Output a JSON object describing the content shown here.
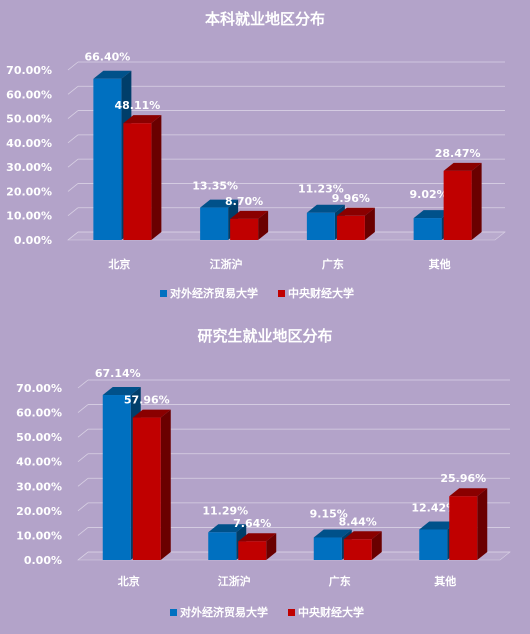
{
  "colors": {
    "background": "#b3a3c9",
    "series_1": "#0070c0",
    "series_2": "#c00000",
    "text": "#ffffff"
  },
  "chart_data": [
    {
      "type": "bar",
      "title": "本科就业地区分布",
      "categories": [
        "北京",
        "江浙沪",
        "广东",
        "其他"
      ],
      "series": [
        {
          "name": "对外经济贸易大学",
          "values": [
            66.4,
            13.35,
            11.23,
            9.02
          ],
          "labels": [
            "66.40%",
            "13.35%",
            "11.23%",
            "9.02%"
          ]
        },
        {
          "name": "中央财经大学",
          "values": [
            48.11,
            8.7,
            9.96,
            28.47
          ],
          "labels": [
            "48.11%",
            "8.70%",
            "9.96%",
            "28.47%"
          ]
        }
      ],
      "y_ticks": [
        "0.00%",
        "10.00%",
        "20.00%",
        "30.00%",
        "40.00%",
        "50.00%",
        "60.00%",
        "70.00%"
      ],
      "ylim": [
        0,
        70
      ],
      "grid": true,
      "legend": "bottom",
      "style": "3d-clustered-column"
    },
    {
      "type": "bar",
      "title": "研究生就业地区分布",
      "categories": [
        "北京",
        "江浙沪",
        "广东",
        "其他"
      ],
      "series": [
        {
          "name": "对外经济贸易大学",
          "values": [
            67.14,
            11.29,
            9.15,
            12.42
          ],
          "labels": [
            "67.14%",
            "11.29%",
            "9.15%",
            "12.42%"
          ]
        },
        {
          "name": "中央财经大学",
          "values": [
            57.96,
            7.64,
            8.44,
            25.96
          ],
          "labels": [
            "57.96%",
            "7.64%",
            "8.44%",
            "25.96%"
          ]
        }
      ],
      "y_ticks": [
        "0.00%",
        "10.00%",
        "20.00%",
        "30.00%",
        "40.00%",
        "50.00%",
        "60.00%",
        "70.00%"
      ],
      "ylim": [
        0,
        70
      ],
      "grid": true,
      "legend": "bottom",
      "style": "3d-clustered-column"
    }
  ]
}
